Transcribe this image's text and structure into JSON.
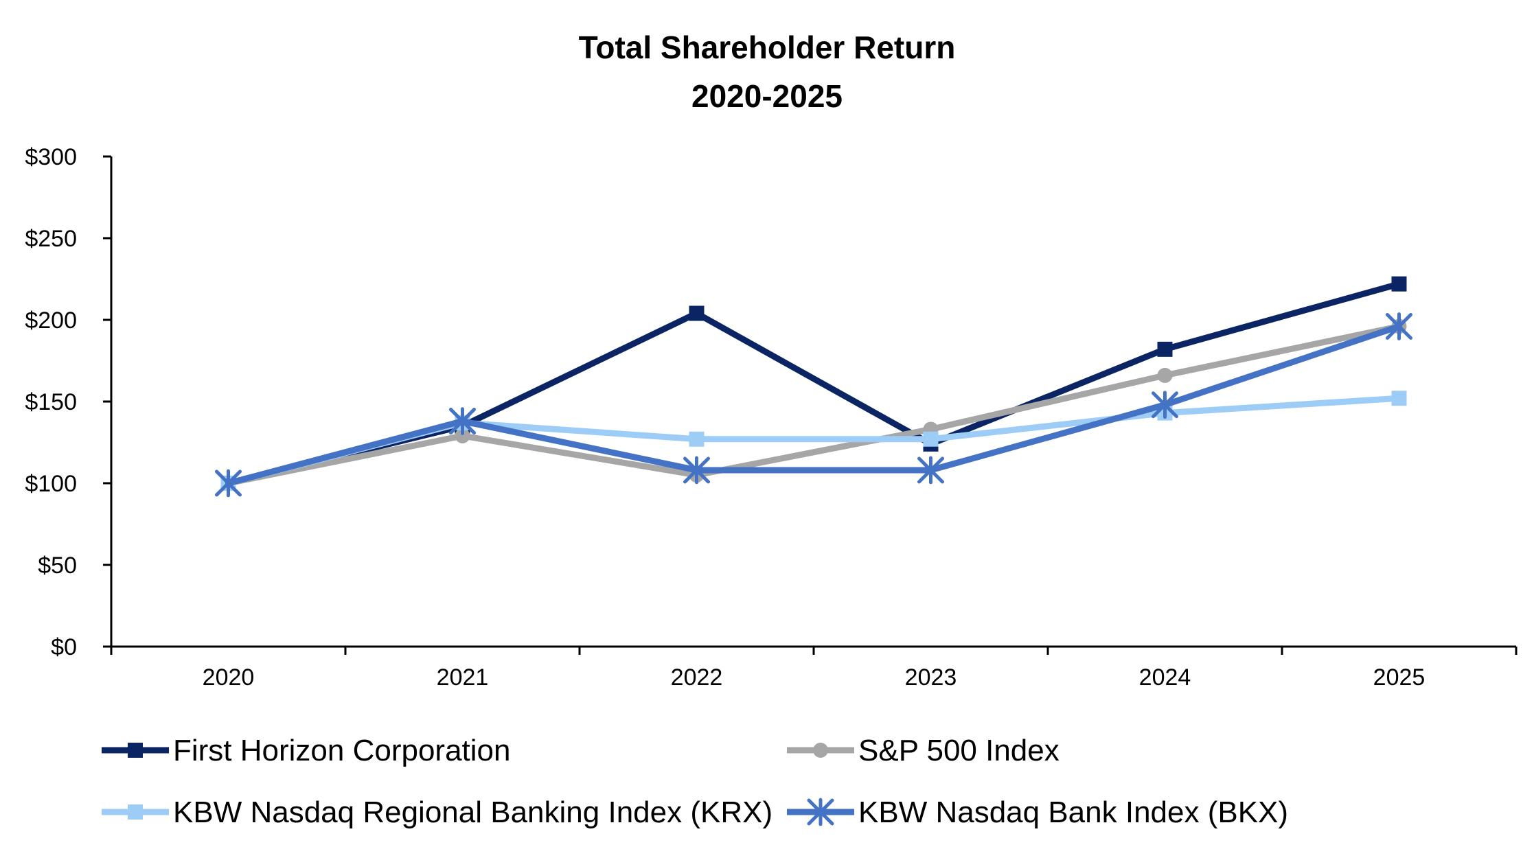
{
  "chart_data": {
    "type": "line",
    "title": "Total Shareholder Return",
    "subtitle": "2020-2025",
    "xlabel": "",
    "ylabel": "",
    "categories": [
      "2020",
      "2021",
      "2022",
      "2023",
      "2024",
      "2025"
    ],
    "ylim": [
      0,
      300
    ],
    "yticks": [
      {
        "value": 0,
        "label": "$0"
      },
      {
        "value": 50,
        "label": "$50"
      },
      {
        "value": 100,
        "label": "$100"
      },
      {
        "value": 150,
        "label": "$150"
      },
      {
        "value": 200,
        "label": "$200"
      },
      {
        "value": 250,
        "label": "$250"
      },
      {
        "value": 300,
        "label": "$300"
      }
    ],
    "grid": false,
    "legend_position": "bottom",
    "series": [
      {
        "name": "First Horizon Corporation",
        "values": [
          100,
          135,
          204,
          124,
          182,
          222
        ],
        "color": "#0b2463",
        "marker": "square"
      },
      {
        "name": "S&P 500 Index",
        "values": [
          100,
          129,
          105,
          133,
          166,
          196
        ],
        "color": "#a6a6a6",
        "marker": "circle"
      },
      {
        "name": "KBW Nasdaq Regional Banking Index (KRX)",
        "values": [
          100,
          137,
          127,
          127,
          143,
          152
        ],
        "color": "#9dcdf7",
        "marker": "square"
      },
      {
        "name": "KBW Nasdaq Bank Index (BKX)",
        "values": [
          100,
          138,
          108,
          108,
          148,
          196
        ],
        "color": "#4472c4",
        "marker": "star"
      }
    ]
  }
}
